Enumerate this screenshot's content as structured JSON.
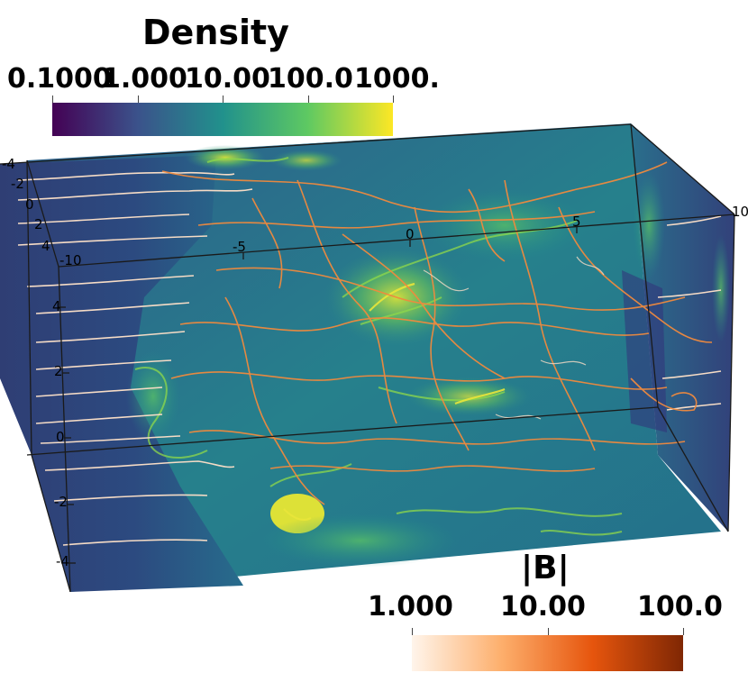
{
  "density_colorbar": {
    "title": "Density",
    "ticks": [
      "0.1000",
      "1.000",
      "10.00",
      "100.0",
      "1000."
    ],
    "colors": [
      "#440154",
      "#3b528b",
      "#21918c",
      "#5ec962",
      "#fde725"
    ]
  },
  "bfield_colorbar": {
    "title": "|B|",
    "ticks": [
      "1.000",
      "10.00",
      "100.0"
    ],
    "colors": [
      "#fff5eb",
      "#fdae6b",
      "#e6550d",
      "#7f2704"
    ]
  },
  "axes": {
    "x_ticks": [
      "-10",
      "-5",
      "0",
      "5",
      "10"
    ],
    "y_ticks": [
      "4",
      "2",
      "0",
      "-2",
      "-4"
    ],
    "z_ticks": [
      "-4",
      "-2",
      "0",
      "2",
      "4"
    ]
  },
  "colors": {
    "background": "#ffffff",
    "box_dark": "#3a2f6b",
    "box_mid": "#2d6e8e",
    "filament": "#7fd34e",
    "hotspot": "#e8e62a",
    "streamline_light": "#f6dcc6",
    "streamline_orange": "#f28a3c"
  }
}
